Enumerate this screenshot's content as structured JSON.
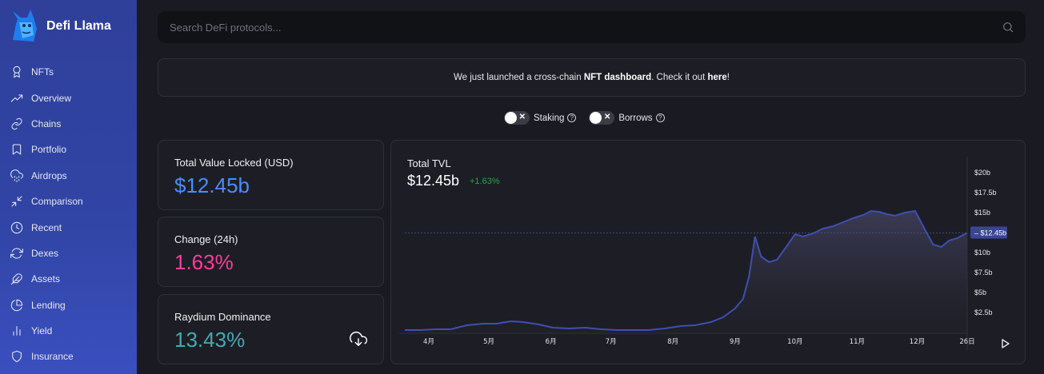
{
  "brand": {
    "name": "Defi Llama"
  },
  "sidebar": {
    "items": [
      {
        "label": "NFTs",
        "icon": "award-icon"
      },
      {
        "label": "Overview",
        "icon": "trending-up-icon"
      },
      {
        "label": "Chains",
        "icon": "link-icon"
      },
      {
        "label": "Portfolio",
        "icon": "bookmark-icon"
      },
      {
        "label": "Airdrops",
        "icon": "cloud-drizzle-icon"
      },
      {
        "label": "Comparison",
        "icon": "minimize-icon"
      },
      {
        "label": "Recent",
        "icon": "clock-icon"
      },
      {
        "label": "Dexes",
        "icon": "refresh-icon"
      },
      {
        "label": "Assets",
        "icon": "feather-icon"
      },
      {
        "label": "Lending",
        "icon": "pie-chart-icon"
      },
      {
        "label": "Yield",
        "icon": "bar-chart-icon"
      },
      {
        "label": "Insurance",
        "icon": "shield-icon"
      }
    ]
  },
  "search": {
    "placeholder": "Search DeFi protocols..."
  },
  "announcement": {
    "prefix": "We just launched a cross-chain ",
    "bold": "NFT dashboard",
    "middle": ". Check it out ",
    "link": "here",
    "suffix": "!"
  },
  "toggles": [
    {
      "label": "Staking",
      "state": "off"
    },
    {
      "label": "Borrows",
      "state": "off"
    }
  ],
  "stats": {
    "tvl": {
      "label": "Total Value Locked (USD)",
      "value": "$12.45b"
    },
    "change": {
      "label": "Change (24h)",
      "value": "1.63%"
    },
    "dominance": {
      "label": "Raydium Dominance",
      "value": "13.43%"
    }
  },
  "chart": {
    "title": "Total TVL",
    "value": "$12.45b",
    "change": "+1.63%"
  },
  "colors": {
    "accent_blue": "#4d8cf5",
    "change_pink": "#fd3c99",
    "dominance_teal": "#46a9b3",
    "positive_green": "#29a34b",
    "line": "#3f4fb0"
  },
  "chart_data": {
    "type": "area",
    "y_ticks": [
      "$20b",
      "$17.5b",
      "$15b",
      "$10b",
      "$7.5b",
      "$5b",
      "$2.5b"
    ],
    "current_label": "$12.45b",
    "x_ticks": [
      "4月",
      "5月",
      "6月",
      "7月",
      "8月",
      "9月",
      "10月",
      "11月",
      "12月",
      "26日"
    ],
    "ylim": [
      0,
      21
    ],
    "x": [
      "2021-03-20",
      "2021-03-28",
      "2021-04-05",
      "2021-04-12",
      "2021-04-20",
      "2021-04-28",
      "2021-05-05",
      "2021-05-12",
      "2021-05-18",
      "2021-05-26",
      "2021-06-02",
      "2021-06-10",
      "2021-06-18",
      "2021-06-26",
      "2021-07-04",
      "2021-07-12",
      "2021-07-20",
      "2021-07-28",
      "2021-08-05",
      "2021-08-12",
      "2021-08-20",
      "2021-08-26",
      "2021-09-01",
      "2021-09-05",
      "2021-09-08",
      "2021-09-11",
      "2021-09-14",
      "2021-09-18",
      "2021-09-22",
      "2021-09-26",
      "2021-10-01",
      "2021-10-05",
      "2021-10-10",
      "2021-10-15",
      "2021-10-20",
      "2021-10-25",
      "2021-10-30",
      "2021-11-04",
      "2021-11-08",
      "2021-11-12",
      "2021-11-16",
      "2021-11-20",
      "2021-11-25",
      "2021-11-30",
      "2021-12-05",
      "2021-12-09",
      "2021-12-13",
      "2021-12-17",
      "2021-12-21",
      "2021-12-24",
      "2021-12-26"
    ],
    "series": [
      {
        "values": [
          0.3,
          0.3,
          0.4,
          0.4,
          0.9,
          1.1,
          1.1,
          1.4,
          1.3,
          1.0,
          0.6,
          0.5,
          0.6,
          0.4,
          0.3,
          0.3,
          0.3,
          0.5,
          0.8,
          0.9,
          1.3,
          1.9,
          3.0,
          4.2,
          7.0,
          12.0,
          9.5,
          8.8,
          9.1,
          10.5,
          12.3,
          12.0,
          12.4,
          13.0,
          13.3,
          13.8,
          14.3,
          14.7,
          15.2,
          15.1,
          14.8,
          14.6,
          15.0,
          15.2,
          12.8,
          11.0,
          10.7,
          11.5,
          11.8,
          12.2,
          12.45
        ]
      }
    ]
  }
}
